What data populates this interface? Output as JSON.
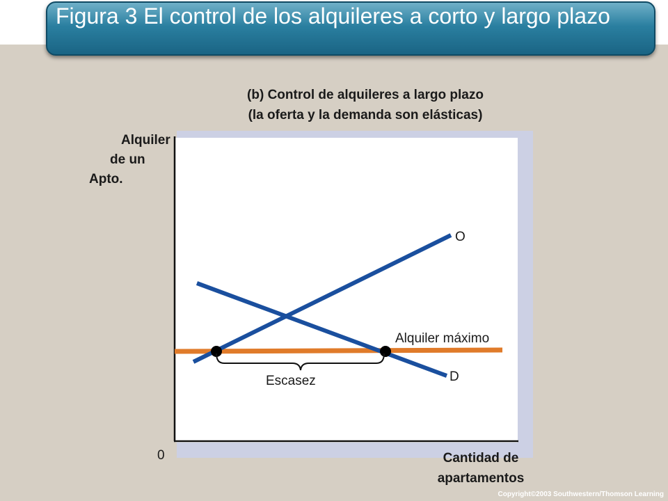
{
  "title": "Figura 3 El control de los alquileres a corto y largo plazo",
  "subtitle": [
    "(b) Control de alquileres a largo plazo",
    "(la oferta y la demanda son elásticas)"
  ],
  "y_axis_label": [
    "Alquiler",
    "de un",
    "Apto."
  ],
  "x_axis_label": [
    "Cantidad de",
    "apartamentos"
  ],
  "origin_label": "0",
  "curves": {
    "supply_label": "O",
    "demand_label": "D",
    "price_ceiling_label": "Alquiler máximo",
    "shortage_label": "Escasez"
  },
  "colors": {
    "supply_demand": "#1a4f9e",
    "price_ceiling": "#e07b2a",
    "title_bar": "#2a7fa0",
    "background": "#d6cfc4"
  },
  "copyright": "Copyright©2003 Southwestern/Thomson Learning"
}
